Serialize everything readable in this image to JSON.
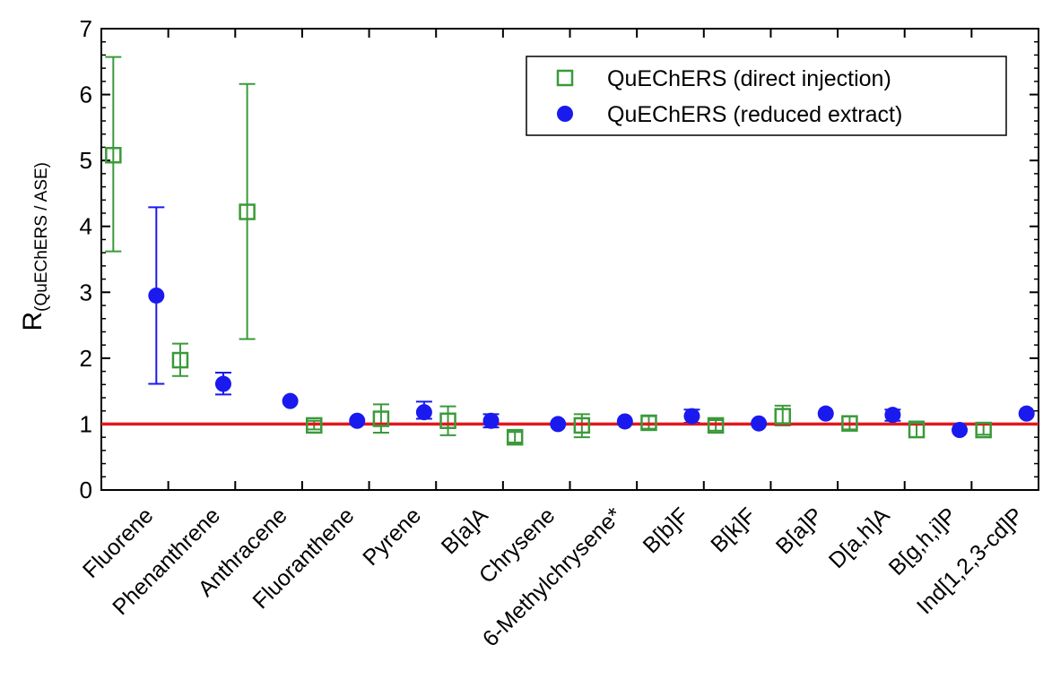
{
  "chart_data": {
    "type": "scatter",
    "ylabel_main": "R",
    "ylabel_sub": "(QuEChERS / ASE)",
    "ylim": [
      0,
      7
    ],
    "yticks": [
      "0",
      "1",
      "2",
      "3",
      "4",
      "5",
      "6",
      "7"
    ],
    "reference_line": {
      "y": 1,
      "color": "#e0191e"
    },
    "categories": [
      "Fluorene",
      "Phenanthrene",
      "Anthracene",
      "Fluoranthene",
      "Pyrene",
      "B[a]A",
      "Chrysene",
      "6-Methylchrysene*",
      "B[b]F",
      "B[k]F",
      "B[a]P",
      "D[a,h]A",
      "B[g,h,i]P",
      "Ind[1,2,3-cd]P"
    ],
    "series": [
      {
        "name": "QuEChERS (direct injection)",
        "marker": "open-square",
        "color": "#3a9a3a",
        "values": [
          5.08,
          1.97,
          4.22,
          0.98,
          1.08,
          1.05,
          0.8,
          0.98,
          1.02,
          0.98,
          1.12,
          1.01,
          0.91,
          0.91
        ],
        "err_low": [
          3.62,
          1.73,
          2.29,
          0.92,
          0.87,
          0.83,
          0.72,
          0.8,
          0.93,
          0.9,
          0.98,
          0.92,
          0.8,
          0.84
        ],
        "err_high": [
          6.57,
          2.22,
          6.16,
          1.05,
          1.3,
          1.27,
          0.88,
          1.15,
          1.12,
          1.06,
          1.28,
          1.12,
          1.04,
          1.0
        ]
      },
      {
        "name": "QuEChERS (reduced extract)",
        "marker": "filled-circle",
        "color": "#1a1aee",
        "values": [
          2.95,
          1.61,
          1.35,
          1.05,
          1.18,
          1.05,
          1.0,
          1.04,
          1.12,
          1.01,
          1.16,
          1.14,
          0.91,
          1.16
        ],
        "err_low": [
          1.61,
          1.45,
          null,
          null,
          1.08,
          0.95,
          null,
          null,
          1.02,
          null,
          null,
          1.05,
          null,
          null
        ],
        "err_high": [
          4.29,
          1.78,
          null,
          null,
          1.34,
          1.15,
          null,
          null,
          1.22,
          null,
          null,
          1.22,
          null,
          null
        ]
      }
    ],
    "legend_position": "top-right",
    "grid": false
  }
}
